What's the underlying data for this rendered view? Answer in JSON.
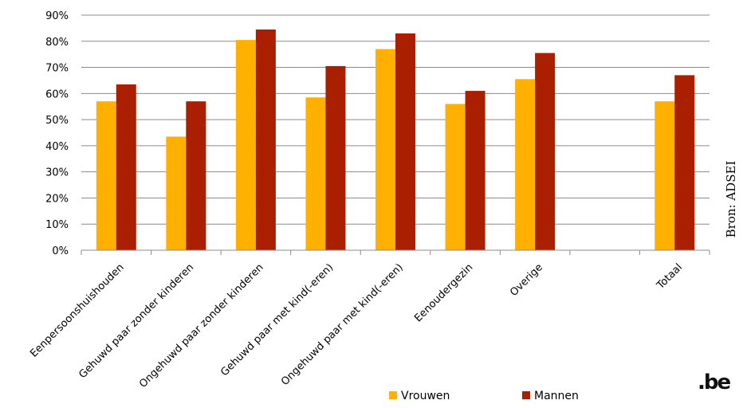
{
  "chart_data": {
    "type": "bar",
    "categories": [
      "Eenpersoonshuishouden",
      "Gehuwd paar zonder kinderen",
      "Ongehuwd paar zonder kinderen",
      "Gehuwd paar met kind(-eren)",
      "Ongehuwd paar met kind(-eren)",
      "Eenoudergezin",
      "Overige",
      "",
      "Totaal"
    ],
    "series": [
      {
        "name": "Vrouwen",
        "color": "#FFB000",
        "values": [
          57,
          43.5,
          80.5,
          58.5,
          77,
          56,
          65.5,
          null,
          57
        ]
      },
      {
        "name": "Mannen",
        "color": "#AA1F00",
        "values": [
          63.5,
          57,
          84.5,
          70.5,
          83,
          61,
          75.5,
          null,
          67
        ]
      }
    ],
    "ylim": [
      0,
      90
    ],
    "yticks": [
      "0%",
      "10%",
      "20%",
      "30%",
      "40%",
      "50%",
      "60%",
      "70%",
      "80%",
      "90%"
    ],
    "grid": true,
    "legend": "bottom"
  },
  "source_note": "Bron: ADSEI",
  "logo_text": ".be"
}
